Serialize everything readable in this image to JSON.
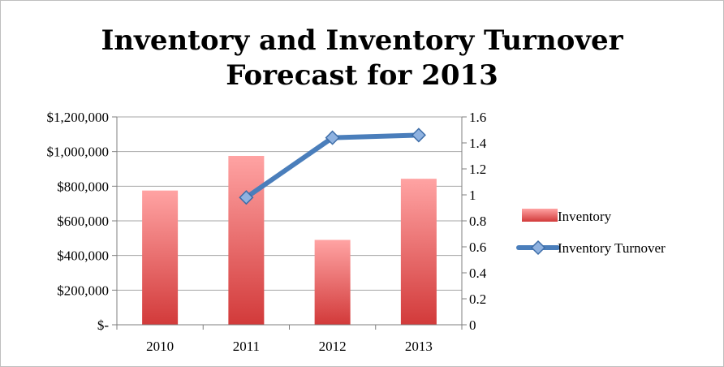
{
  "chart_data": {
    "type": "bar",
    "title_lines": [
      "Inventory and Inventory Turnover",
      "Forecast for 2013"
    ],
    "categories": [
      "2010",
      "2011",
      "2012",
      "2013"
    ],
    "series": [
      {
        "name": "Inventory",
        "type": "bar",
        "axis": "left",
        "values": [
          775000,
          975000,
          490000,
          843000
        ],
        "color_light": "#ffa3a3",
        "color_dark": "#d23a3a"
      },
      {
        "name": "Inventory Turnover",
        "type": "line",
        "axis": "right",
        "values": [
          null,
          0.98,
          1.44,
          1.46
        ],
        "color": "#4a7ebb",
        "marker": "diamond"
      }
    ],
    "y_left": {
      "ylim": [
        0,
        1200000
      ],
      "ticks": [
        0,
        200000,
        400000,
        600000,
        800000,
        1000000,
        1200000
      ],
      "tick_labels": [
        "$-",
        "$200,000",
        "$400,000",
        "$600,000",
        "$800,000",
        "$1,000,000",
        "$1,200,000"
      ]
    },
    "y_right": {
      "ylim": [
        0,
        1.6
      ],
      "ticks": [
        0,
        0.2,
        0.4,
        0.6,
        0.8,
        1,
        1.2,
        1.4,
        1.6
      ],
      "tick_labels": [
        "0",
        "0.2",
        "0.4",
        "0.6",
        "0.8",
        "1",
        "1.2",
        "1.4",
        "1.6"
      ]
    },
    "grid": "horizontal",
    "legend_position": "right"
  }
}
